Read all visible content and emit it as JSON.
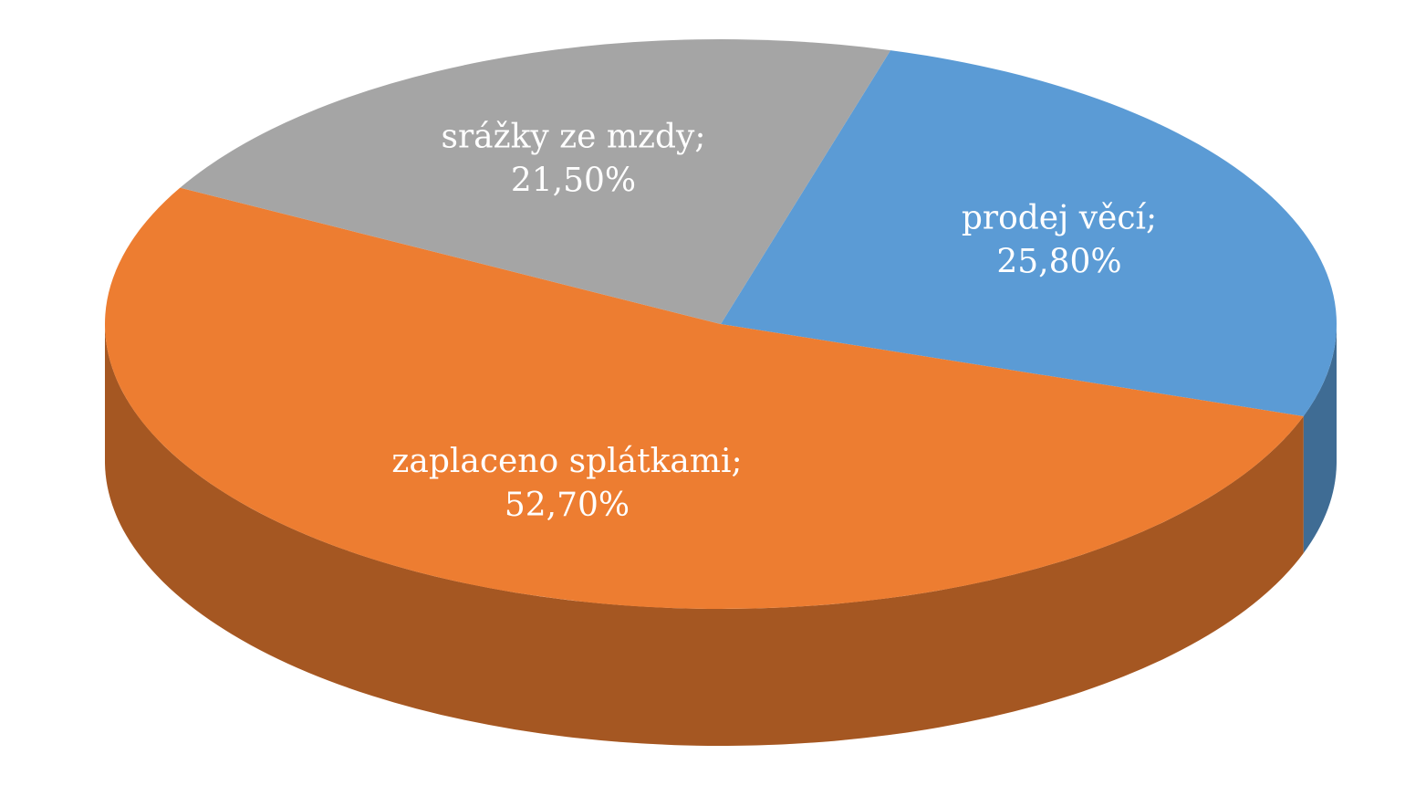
{
  "chart_data": {
    "type": "pie",
    "categories": [
      "prodej věcí;",
      "zaplaceno splátkami;",
      "srážky ze mzdy;"
    ],
    "values": [
      25.8,
      52.7,
      21.5
    ],
    "value_labels": [
      "25,80%",
      "52,70%",
      "21,50%"
    ],
    "colors": [
      "#5b9bd5",
      "#ed7d31",
      "#a5a5a5"
    ]
  }
}
